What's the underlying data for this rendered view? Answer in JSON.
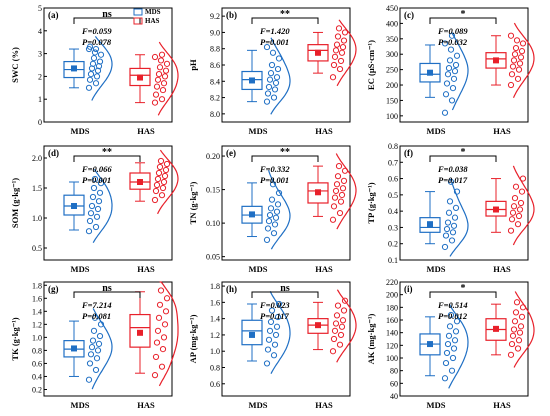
{
  "figure": {
    "legend": [
      {
        "label": "MDS",
        "color": "#1f6fc4"
      },
      {
        "label": "HAS",
        "color": "#e8202a"
      }
    ],
    "colors": {
      "MDS": "#1f6fc4",
      "HAS": "#e8202a"
    }
  },
  "chart_data": [
    {
      "panel": "(a)",
      "type": "box",
      "ylabel": "SWC (%)",
      "ylim": [
        0,
        5
      ],
      "yticks": [
        0,
        1,
        2,
        3,
        4,
        5
      ],
      "categories": [
        "MDS",
        "HAS"
      ],
      "significance": "ns",
      "stats": {
        "F": "F=0.059",
        "P": "P=0.078"
      },
      "series": [
        {
          "name": "MDS",
          "mean": 2.35,
          "box": {
            "q1": 1.95,
            "median": 2.3,
            "q3": 2.65,
            "min": 1.5,
            "max": 3.2
          },
          "points": [
            1.5,
            1.7,
            1.85,
            2.0,
            2.1,
            2.25,
            2.35,
            2.45,
            2.55,
            2.65,
            2.8,
            2.95,
            3.05,
            3.2,
            3.2,
            3.3
          ]
        },
        {
          "name": "HAS",
          "mean": 1.95,
          "box": {
            "q1": 1.6,
            "median": 2.05,
            "q3": 2.35,
            "min": 0.85,
            "max": 2.95
          },
          "points": [
            0.85,
            1.0,
            1.2,
            1.4,
            1.55,
            1.7,
            1.85,
            2.0,
            2.1,
            2.25,
            2.4,
            2.55,
            2.7,
            2.85,
            2.95
          ]
        }
      ]
    },
    {
      "panel": "(b)",
      "type": "box",
      "ylabel": "pH",
      "ylim": [
        7.9,
        9.3
      ],
      "yticks": [
        8.0,
        8.2,
        8.4,
        8.6,
        8.8,
        9.0,
        9.2
      ],
      "categories": [
        "MDS",
        "HAS"
      ],
      "significance": "**",
      "stats": {
        "F": "F=1.420",
        "P": "P=0.001"
      },
      "series": [
        {
          "name": "MDS",
          "mean": 8.41,
          "box": {
            "q1": 8.3,
            "median": 8.42,
            "q3": 8.52,
            "min": 8.15,
            "max": 8.78
          },
          "points": [
            8.15,
            8.2,
            8.25,
            8.3,
            8.33,
            8.38,
            8.42,
            8.45,
            8.5,
            8.55,
            8.6,
            8.68,
            8.75,
            8.82
          ]
        },
        {
          "name": "HAS",
          "mean": 8.75,
          "box": {
            "q1": 8.65,
            "median": 8.78,
            "q3": 8.85,
            "min": 8.5,
            "max": 9.0
          },
          "points": [
            8.45,
            8.55,
            8.6,
            8.65,
            8.7,
            8.75,
            8.78,
            8.82,
            8.85,
            8.9,
            8.95,
            9.0,
            9.05
          ]
        }
      ]
    },
    {
      "panel": "(c)",
      "type": "box",
      "ylabel": "EC (μS·cm⁻¹)",
      "ylim": [
        80,
        450
      ],
      "yticks": [
        100,
        150,
        200,
        250,
        300,
        350,
        400,
        450
      ],
      "categories": [
        "MDS",
        "HAS"
      ],
      "significance": "*",
      "stats": {
        "F": "F=0.089",
        "P": "P=0.032"
      },
      "series": [
        {
          "name": "MDS",
          "mean": 240,
          "box": {
            "q1": 210,
            "median": 235,
            "q3": 270,
            "min": 160,
            "max": 330
          },
          "points": [
            110,
            150,
            170,
            190,
            205,
            220,
            235,
            245,
            255,
            265,
            280,
            295,
            315,
            335,
            360
          ]
        },
        {
          "name": "HAS",
          "mean": 280,
          "box": {
            "q1": 255,
            "median": 285,
            "q3": 305,
            "min": 200,
            "max": 360
          },
          "points": [
            200,
            220,
            235,
            250,
            260,
            270,
            280,
            290,
            300,
            310,
            320,
            335,
            345,
            360
          ]
        }
      ]
    },
    {
      "panel": "(d)",
      "type": "box",
      "ylabel": "SOM (g·kg⁻¹)",
      "ylim": [
        0.3,
        2.2
      ],
      "yticks": [
        0.5,
        1.0,
        1.5,
        2.0
      ],
      "categories": [
        "MDS",
        "HAS"
      ],
      "significance": "**",
      "stats": {
        "F": "F=0.066",
        "P": "P=0.001"
      },
      "series": [
        {
          "name": "MDS",
          "mean": 1.2,
          "box": {
            "q1": 1.05,
            "median": 1.2,
            "q3": 1.38,
            "min": 0.8,
            "max": 1.6
          },
          "points": [
            0.78,
            0.85,
            0.95,
            1.02,
            1.08,
            1.15,
            1.2,
            1.28,
            1.35,
            1.42,
            1.5,
            1.58,
            1.65
          ]
        },
        {
          "name": "HAS",
          "mean": 1.6,
          "box": {
            "q1": 1.48,
            "median": 1.6,
            "q3": 1.75,
            "min": 1.28,
            "max": 1.92
          },
          "points": [
            1.3,
            1.38,
            1.45,
            1.5,
            1.55,
            1.6,
            1.65,
            1.7,
            1.75,
            1.8,
            1.85,
            1.9,
            1.95
          ]
        }
      ]
    },
    {
      "panel": "(e)",
      "type": "box",
      "ylabel": "TN (g·kg⁻¹)",
      "ylim": [
        0.045,
        0.215
      ],
      "yticks": [
        0.05,
        0.1,
        0.15,
        0.2
      ],
      "categories": [
        "MDS",
        "HAS"
      ],
      "significance": "**",
      "stats": {
        "F": "F=0.332",
        "P": "P=0.001"
      },
      "series": [
        {
          "name": "MDS",
          "mean": 0.113,
          "box": {
            "q1": 0.1,
            "median": 0.112,
            "q3": 0.125,
            "min": 0.08,
            "max": 0.16
          },
          "points": [
            0.075,
            0.085,
            0.092,
            0.098,
            0.103,
            0.108,
            0.112,
            0.117,
            0.122,
            0.128,
            0.135,
            0.145,
            0.158
          ]
        },
        {
          "name": "HAS",
          "mean": 0.146,
          "box": {
            "q1": 0.13,
            "median": 0.148,
            "q3": 0.16,
            "min": 0.11,
            "max": 0.185
          },
          "points": [
            0.105,
            0.115,
            0.125,
            0.132,
            0.138,
            0.142,
            0.148,
            0.152,
            0.158,
            0.163,
            0.17,
            0.178,
            0.185
          ]
        }
      ]
    },
    {
      "panel": "(f)",
      "type": "box",
      "ylabel": "TP (g·kg⁻¹)",
      "ylim": [
        0.1,
        0.8
      ],
      "yticks": [
        0.1,
        0.2,
        0.3,
        0.4,
        0.5,
        0.6,
        0.7,
        0.8
      ],
      "categories": [
        "MDS",
        "HAS"
      ],
      "significance": "*",
      "stats": {
        "F": "F=0.038",
        "P": "P=0.017"
      },
      "series": [
        {
          "name": "MDS",
          "mean": 0.32,
          "box": {
            "q1": 0.27,
            "median": 0.3,
            "q3": 0.36,
            "min": 0.2,
            "max": 0.52
          },
          "points": [
            0.18,
            0.22,
            0.25,
            0.27,
            0.29,
            0.31,
            0.33,
            0.36,
            0.39,
            0.42,
            0.46,
            0.52,
            0.58
          ]
        },
        {
          "name": "HAS",
          "mean": 0.41,
          "box": {
            "q1": 0.37,
            "median": 0.41,
            "q3": 0.46,
            "min": 0.27,
            "max": 0.6
          },
          "points": [
            0.28,
            0.32,
            0.35,
            0.37,
            0.39,
            0.41,
            0.43,
            0.45,
            0.48,
            0.52,
            0.55,
            0.6
          ]
        }
      ]
    },
    {
      "panel": "(g)",
      "type": "box",
      "ylabel": "TK (g·kg⁻¹)",
      "ylim": [
        0.1,
        1.85
      ],
      "yticks": [
        0.2,
        0.4,
        0.6,
        0.8,
        1.0,
        1.2,
        1.4,
        1.6,
        1.8
      ],
      "categories": [
        "MDS",
        "HAS"
      ],
      "significance": "ns",
      "stats": {
        "F": "F=7.214",
        "P": "P=0.081"
      },
      "series": [
        {
          "name": "MDS",
          "mean": 0.83,
          "box": {
            "q1": 0.7,
            "median": 0.82,
            "q3": 0.95,
            "min": 0.4,
            "max": 1.25
          },
          "points": [
            0.35,
            0.5,
            0.6,
            0.68,
            0.74,
            0.8,
            0.85,
            0.9,
            0.95,
            1.02,
            1.1,
            1.2,
            1.3
          ]
        },
        {
          "name": "HAS",
          "mean": 1.07,
          "box": {
            "q1": 0.85,
            "median": 1.15,
            "q3": 1.35,
            "min": 0.45,
            "max": 1.7
          },
          "points": [
            0.42,
            0.55,
            0.7,
            0.82,
            0.92,
            1.0,
            1.1,
            1.2,
            1.3,
            1.4,
            1.5,
            1.6,
            1.72
          ]
        }
      ]
    },
    {
      "panel": "(h)",
      "type": "box",
      "ylabel": "AP (mg·kg⁻¹)",
      "ylim": [
        0.45,
        1.85
      ],
      "yticks": [
        0.6,
        0.8,
        1.0,
        1.2,
        1.4,
        1.6,
        1.8
      ],
      "categories": [
        "MDS",
        "HAS"
      ],
      "significance": "ns",
      "stats": {
        "F": "F=0.023",
        "P": "P=0.117"
      },
      "series": [
        {
          "name": "MDS",
          "mean": 1.2,
          "box": {
            "q1": 1.08,
            "median": 1.25,
            "q3": 1.38,
            "min": 0.88,
            "max": 1.58
          },
          "points": [
            0.85,
            0.95,
            1.02,
            1.08,
            1.14,
            1.2,
            1.25,
            1.3,
            1.36,
            1.42,
            1.5,
            1.58
          ]
        },
        {
          "name": "HAS",
          "mean": 1.32,
          "box": {
            "q1": 1.22,
            "median": 1.32,
            "q3": 1.4,
            "min": 1.02,
            "max": 1.6
          },
          "points": [
            1.0,
            1.08,
            1.15,
            1.2,
            1.25,
            1.3,
            1.34,
            1.38,
            1.44,
            1.5,
            1.56,
            1.62
          ]
        }
      ]
    },
    {
      "panel": "(i)",
      "type": "box",
      "ylabel": "AK (mg·kg⁻¹)",
      "ylim": [
        40,
        220
      ],
      "yticks": [
        40,
        60,
        80,
        100,
        120,
        140,
        160,
        180,
        200,
        220
      ],
      "categories": [
        "MDS",
        "HAS"
      ],
      "significance": "*",
      "stats": {
        "F": "F=0.514",
        "P": "P=0.012"
      },
      "series": [
        {
          "name": "MDS",
          "mean": 122,
          "box": {
            "q1": 105,
            "median": 122,
            "q3": 138,
            "min": 72,
            "max": 165
          },
          "points": [
            68,
            80,
            92,
            100,
            108,
            115,
            122,
            128,
            135,
            142,
            150,
            158,
            168
          ]
        },
        {
          "name": "HAS",
          "mean": 146,
          "box": {
            "q1": 128,
            "median": 145,
            "q3": 162,
            "min": 105,
            "max": 185
          },
          "points": [
            105,
            115,
            122,
            128,
            135,
            140,
            145,
            150,
            158,
            165,
            172,
            180,
            188
          ]
        }
      ]
    }
  ]
}
